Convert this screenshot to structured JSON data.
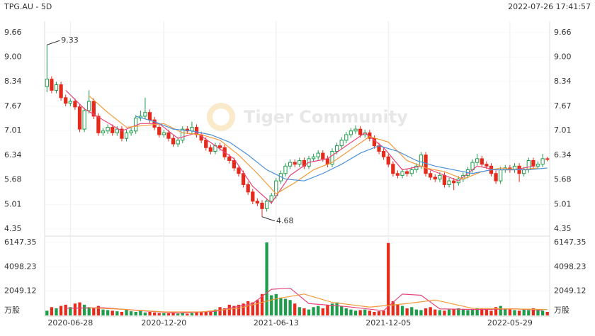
{
  "chart_data": {
    "type": "candlestick",
    "title": "TPG.AU - 5D",
    "timestamp": "2022-07-26 17:41:57",
    "watermark": "Tiger Community",
    "up_color": "#1f9d4c",
    "down_color": "#e52b1c",
    "grid": true,
    "ylim": [
      4.35,
      9.66
    ],
    "yticks": [
      9.66,
      {
        "value": 9,
        "label": "9.00"
      },
      8.34,
      7.67,
      7.01,
      6.34,
      5.68,
      5.01,
      4.35
    ],
    "xlim": [
      -0.5,
      107.5
    ],
    "xticks": [
      {
        "value": 5,
        "label": "2020-06-28"
      },
      {
        "value": 25,
        "label": "2020-12-20"
      },
      {
        "value": 49,
        "label": "2021-06-13"
      },
      {
        "value": 73,
        "label": "2021-12-05"
      },
      {
        "value": 99,
        "label": "2022-05-29"
      }
    ],
    "candles": [
      [
        8.2,
        9.33,
        8.05,
        8.4
      ],
      [
        8.4,
        8.48,
        8.02,
        8.1
      ],
      [
        8.1,
        8.33,
        8.02,
        8.25
      ],
      [
        8.25,
        8.33,
        7.82,
        7.9
      ],
      [
        7.9,
        7.98,
        7.67,
        7.75
      ],
      [
        7.75,
        7.88,
        7.67,
        7.8
      ],
      [
        7.8,
        7.88,
        7.57,
        7.65
      ],
      [
        7.65,
        7.73,
        6.97,
        7.05
      ],
      [
        7.05,
        7.63,
        6.97,
        7.55
      ],
      [
        7.55,
        8.1,
        7.47,
        7.8
      ],
      [
        7.8,
        7.88,
        7.32,
        7.4
      ],
      [
        7.4,
        7.48,
        6.87,
        6.95
      ],
      [
        6.95,
        7.08,
        6.87,
        7.0
      ],
      [
        7.0,
        7.18,
        6.92,
        7.1
      ],
      [
        7.1,
        7.18,
        6.87,
        6.95
      ],
      [
        6.95,
        7.13,
        6.87,
        7.05
      ],
      [
        7.05,
        7.13,
        6.72,
        6.8
      ],
      [
        6.8,
        7.03,
        6.72,
        6.95
      ],
      [
        6.95,
        7.08,
        6.87,
        7.0
      ],
      [
        7.0,
        7.43,
        6.92,
        7.35
      ],
      [
        7.35,
        7.55,
        7.27,
        7.4
      ],
      [
        7.4,
        7.9,
        7.32,
        7.5
      ],
      [
        7.5,
        7.58,
        7.22,
        7.3
      ],
      [
        7.3,
        7.38,
        7.02,
        7.1
      ],
      [
        7.1,
        7.18,
        6.82,
        6.9
      ],
      [
        6.9,
        7.03,
        6.82,
        6.95
      ],
      [
        6.95,
        7.03,
        6.72,
        6.8
      ],
      [
        6.8,
        6.88,
        6.57,
        6.65
      ],
      [
        6.65,
        6.83,
        6.57,
        6.75
      ],
      [
        6.75,
        7.13,
        6.67,
        7.05
      ],
      [
        7.05,
        7.13,
        6.92,
        7.0
      ],
      [
        7.0,
        7.25,
        6.92,
        7.1
      ],
      [
        7.1,
        7.18,
        6.82,
        6.9
      ],
      [
        6.9,
        6.98,
        6.67,
        6.75
      ],
      [
        6.75,
        6.83,
        6.47,
        6.55
      ],
      [
        6.55,
        6.63,
        6.37,
        6.45
      ],
      [
        6.45,
        6.68,
        6.37,
        6.6
      ],
      [
        6.6,
        6.68,
        6.47,
        6.55
      ],
      [
        6.55,
        6.63,
        6.22,
        6.3
      ],
      [
        6.3,
        6.38,
        6.12,
        6.2
      ],
      [
        6.2,
        6.28,
        5.92,
        6.0
      ],
      [
        6.0,
        6.08,
        5.77,
        5.85
      ],
      [
        5.85,
        5.93,
        5.47,
        5.55
      ],
      [
        5.55,
        5.63,
        5.27,
        5.35
      ],
      [
        5.35,
        5.43,
        5.02,
        5.1
      ],
      [
        5.1,
        5.18,
        4.97,
        5.05
      ],
      [
        5.05,
        5.13,
        4.68,
        4.9
      ],
      [
        4.9,
        5.18,
        4.82,
        5.1
      ],
      [
        5.1,
        5.33,
        5.02,
        5.25
      ],
      [
        5.25,
        5.73,
        5.17,
        5.65
      ],
      [
        5.65,
        5.93,
        5.57,
        5.85
      ],
      [
        5.85,
        6.13,
        5.77,
        6.05
      ],
      [
        6.05,
        6.23,
        5.97,
        6.15
      ],
      [
        6.15,
        6.23,
        6.02,
        6.1
      ],
      [
        6.1,
        6.28,
        6.02,
        6.2
      ],
      [
        6.2,
        6.28,
        5.97,
        6.05
      ],
      [
        6.05,
        6.33,
        5.97,
        6.25
      ],
      [
        6.25,
        6.38,
        6.17,
        6.3
      ],
      [
        6.3,
        6.48,
        6.22,
        6.4
      ],
      [
        6.4,
        6.48,
        6.17,
        6.25
      ],
      [
        6.25,
        6.33,
        6.02,
        6.1
      ],
      [
        6.1,
        6.53,
        6.02,
        6.45
      ],
      [
        6.45,
        6.68,
        6.37,
        6.6
      ],
      [
        6.6,
        6.83,
        6.52,
        6.75
      ],
      [
        6.75,
        6.98,
        6.67,
        6.9
      ],
      [
        6.9,
        7.08,
        6.82,
        7.0
      ],
      [
        7.0,
        7.15,
        6.92,
        7.05
      ],
      [
        7.05,
        7.13,
        6.82,
        6.9
      ],
      [
        6.9,
        7.03,
        6.82,
        6.95
      ],
      [
        6.95,
        7.03,
        6.72,
        6.8
      ],
      [
        6.8,
        6.88,
        6.52,
        6.6
      ],
      [
        6.6,
        6.68,
        6.37,
        6.45
      ],
      [
        6.45,
        6.53,
        6.22,
        6.3
      ],
      [
        6.3,
        6.38,
        6.02,
        6.1
      ],
      [
        6.1,
        6.18,
        5.77,
        5.85
      ],
      [
        5.85,
        5.93,
        5.72,
        5.8
      ],
      [
        5.8,
        5.98,
        5.72,
        5.9
      ],
      [
        5.9,
        5.98,
        5.77,
        5.85
      ],
      [
        5.85,
        6.03,
        5.77,
        5.95
      ],
      [
        5.95,
        6.13,
        5.87,
        6.05
      ],
      [
        6.05,
        6.43,
        5.97,
        6.35
      ],
      [
        6.35,
        6.43,
        5.77,
        5.85
      ],
      [
        5.85,
        5.93,
        5.67,
        5.75
      ],
      [
        5.75,
        5.83,
        5.62,
        5.7
      ],
      [
        5.7,
        5.88,
        5.62,
        5.8
      ],
      [
        5.8,
        5.88,
        5.47,
        5.55
      ],
      [
        5.55,
        5.73,
        5.47,
        5.65
      ],
      [
        5.65,
        5.73,
        5.4,
        5.6
      ],
      [
        5.6,
        5.78,
        5.52,
        5.7
      ],
      [
        5.7,
        5.88,
        5.62,
        5.8
      ],
      [
        5.8,
        6.03,
        5.72,
        5.95
      ],
      [
        5.95,
        6.23,
        5.87,
        6.15
      ],
      [
        6.15,
        6.38,
        6.07,
        6.25
      ],
      [
        6.25,
        6.33,
        6.02,
        6.1
      ],
      [
        6.1,
        6.18,
        5.97,
        6.05
      ],
      [
        6.05,
        6.13,
        5.77,
        5.85
      ],
      [
        5.85,
        5.93,
        5.57,
        5.65
      ],
      [
        5.65,
        6.03,
        5.57,
        5.95
      ],
      [
        5.95,
        6.08,
        5.87,
        6.0
      ],
      [
        6.0,
        6.08,
        5.87,
        5.95
      ],
      [
        5.95,
        6.13,
        5.87,
        6.05
      ],
      [
        6.05,
        6.13,
        5.62,
        5.85
      ],
      [
        5.85,
        6.03,
        5.77,
        5.95
      ],
      [
        5.95,
        6.28,
        5.87,
        6.2
      ],
      [
        6.2,
        6.28,
        5.97,
        6.05
      ],
      [
        6.05,
        6.18,
        5.97,
        6.1
      ],
      [
        6.1,
        6.38,
        6.02,
        6.25
      ],
      [
        6.25,
        6.3,
        6.18,
        6.25
      ]
    ],
    "ma_lines": [
      {
        "color": "#e8457a",
        "x": [
          4,
          8,
          12,
          16,
          20,
          24,
          28,
          32,
          36,
          40,
          44,
          48,
          52,
          56,
          60,
          64,
          68,
          72,
          76,
          80,
          84,
          88,
          92,
          96,
          100,
          104
        ],
        "values": [
          8.1,
          7.6,
          7.3,
          7.0,
          7.2,
          7.2,
          6.8,
          6.95,
          6.6,
          6.25,
          5.5,
          5.05,
          5.8,
          6.15,
          6.25,
          6.6,
          6.95,
          6.55,
          5.95,
          6.05,
          5.85,
          5.65,
          6.05,
          5.95,
          5.95,
          6.05
        ]
      },
      {
        "color": "#f39a3a",
        "x": [
          9,
          13,
          17,
          21,
          25,
          29,
          33,
          37,
          41,
          45,
          49,
          53,
          57,
          61,
          65,
          69,
          73,
          77,
          81,
          85,
          89,
          93,
          97,
          101,
          105
        ],
        "values": [
          7.95,
          7.5,
          7.1,
          7.15,
          7.2,
          6.95,
          6.9,
          6.75,
          6.35,
          5.85,
          5.3,
          5.6,
          5.95,
          6.15,
          6.5,
          6.85,
          6.7,
          6.2,
          6.0,
          5.9,
          5.7,
          5.9,
          6.0,
          5.95,
          6.0
        ]
      },
      {
        "color": "#4a90d9",
        "x": [
          19,
          23,
          27,
          31,
          35,
          39,
          43,
          47,
          51,
          55,
          59,
          63,
          67,
          71,
          75,
          79,
          83,
          87,
          91,
          95,
          99,
          103,
          107
        ],
        "values": [
          7.4,
          7.25,
          7.05,
          7.0,
          6.9,
          6.7,
          6.35,
          5.95,
          5.7,
          5.65,
          5.85,
          6.1,
          6.4,
          6.6,
          6.45,
          6.2,
          6.05,
          5.95,
          5.85,
          5.95,
          5.95,
          5.95,
          6.0
        ]
      }
    ],
    "volume": {
      "unit": "万股",
      "ylim": [
        0,
        6147.35
      ],
      "yticks": [
        6147.35,
        4098.23,
        2049.12
      ],
      "values": [
        400,
        700,
        600,
        800,
        900,
        700,
        1000,
        1100,
        900,
        700,
        600,
        800,
        500,
        450,
        400,
        350,
        300,
        500,
        350,
        300,
        400,
        250,
        300,
        250,
        200,
        200,
        180,
        200,
        150,
        200,
        150,
        200,
        250,
        300,
        350,
        400,
        500,
        700,
        600,
        900,
        800,
        900,
        1000,
        1200,
        1100,
        1300,
        1800,
        6147.35,
        1700,
        1800,
        1500,
        1400,
        1300,
        1000,
        700,
        600,
        500,
        700,
        800,
        600,
        900,
        1000,
        1100,
        800,
        600,
        500,
        400,
        450,
        500,
        400,
        300,
        350,
        400,
        6100,
        1200,
        900,
        800,
        600,
        700,
        500,
        450,
        600,
        700,
        500,
        450,
        400,
        500,
        550,
        600,
        500,
        450,
        500,
        600,
        550,
        500,
        400,
        700,
        800,
        600,
        500,
        450,
        400,
        500,
        450,
        600,
        500,
        400,
        300
      ],
      "ma_lines": [
        {
          "color": "#e8457a",
          "x": [
            4,
            12,
            20,
            28,
            36,
            44,
            48,
            52,
            56,
            64,
            72,
            76,
            80,
            84,
            92,
            100,
            106
          ],
          "values": [
            600,
            650,
            400,
            200,
            350,
            1000,
            2200,
            2300,
            1000,
            750,
            400,
            1800,
            1700,
            550,
            500,
            550,
            450
          ]
        },
        {
          "color": "#f39a3a",
          "x": [
            9,
            17,
            25,
            33,
            41,
            49,
            55,
            61,
            69,
            77,
            83,
            91,
            99,
            107
          ],
          "values": [
            650,
            500,
            300,
            300,
            600,
            1400,
            1800,
            1100,
            700,
            1000,
            1300,
            600,
            550,
            500
          ]
        }
      ]
    }
  }
}
